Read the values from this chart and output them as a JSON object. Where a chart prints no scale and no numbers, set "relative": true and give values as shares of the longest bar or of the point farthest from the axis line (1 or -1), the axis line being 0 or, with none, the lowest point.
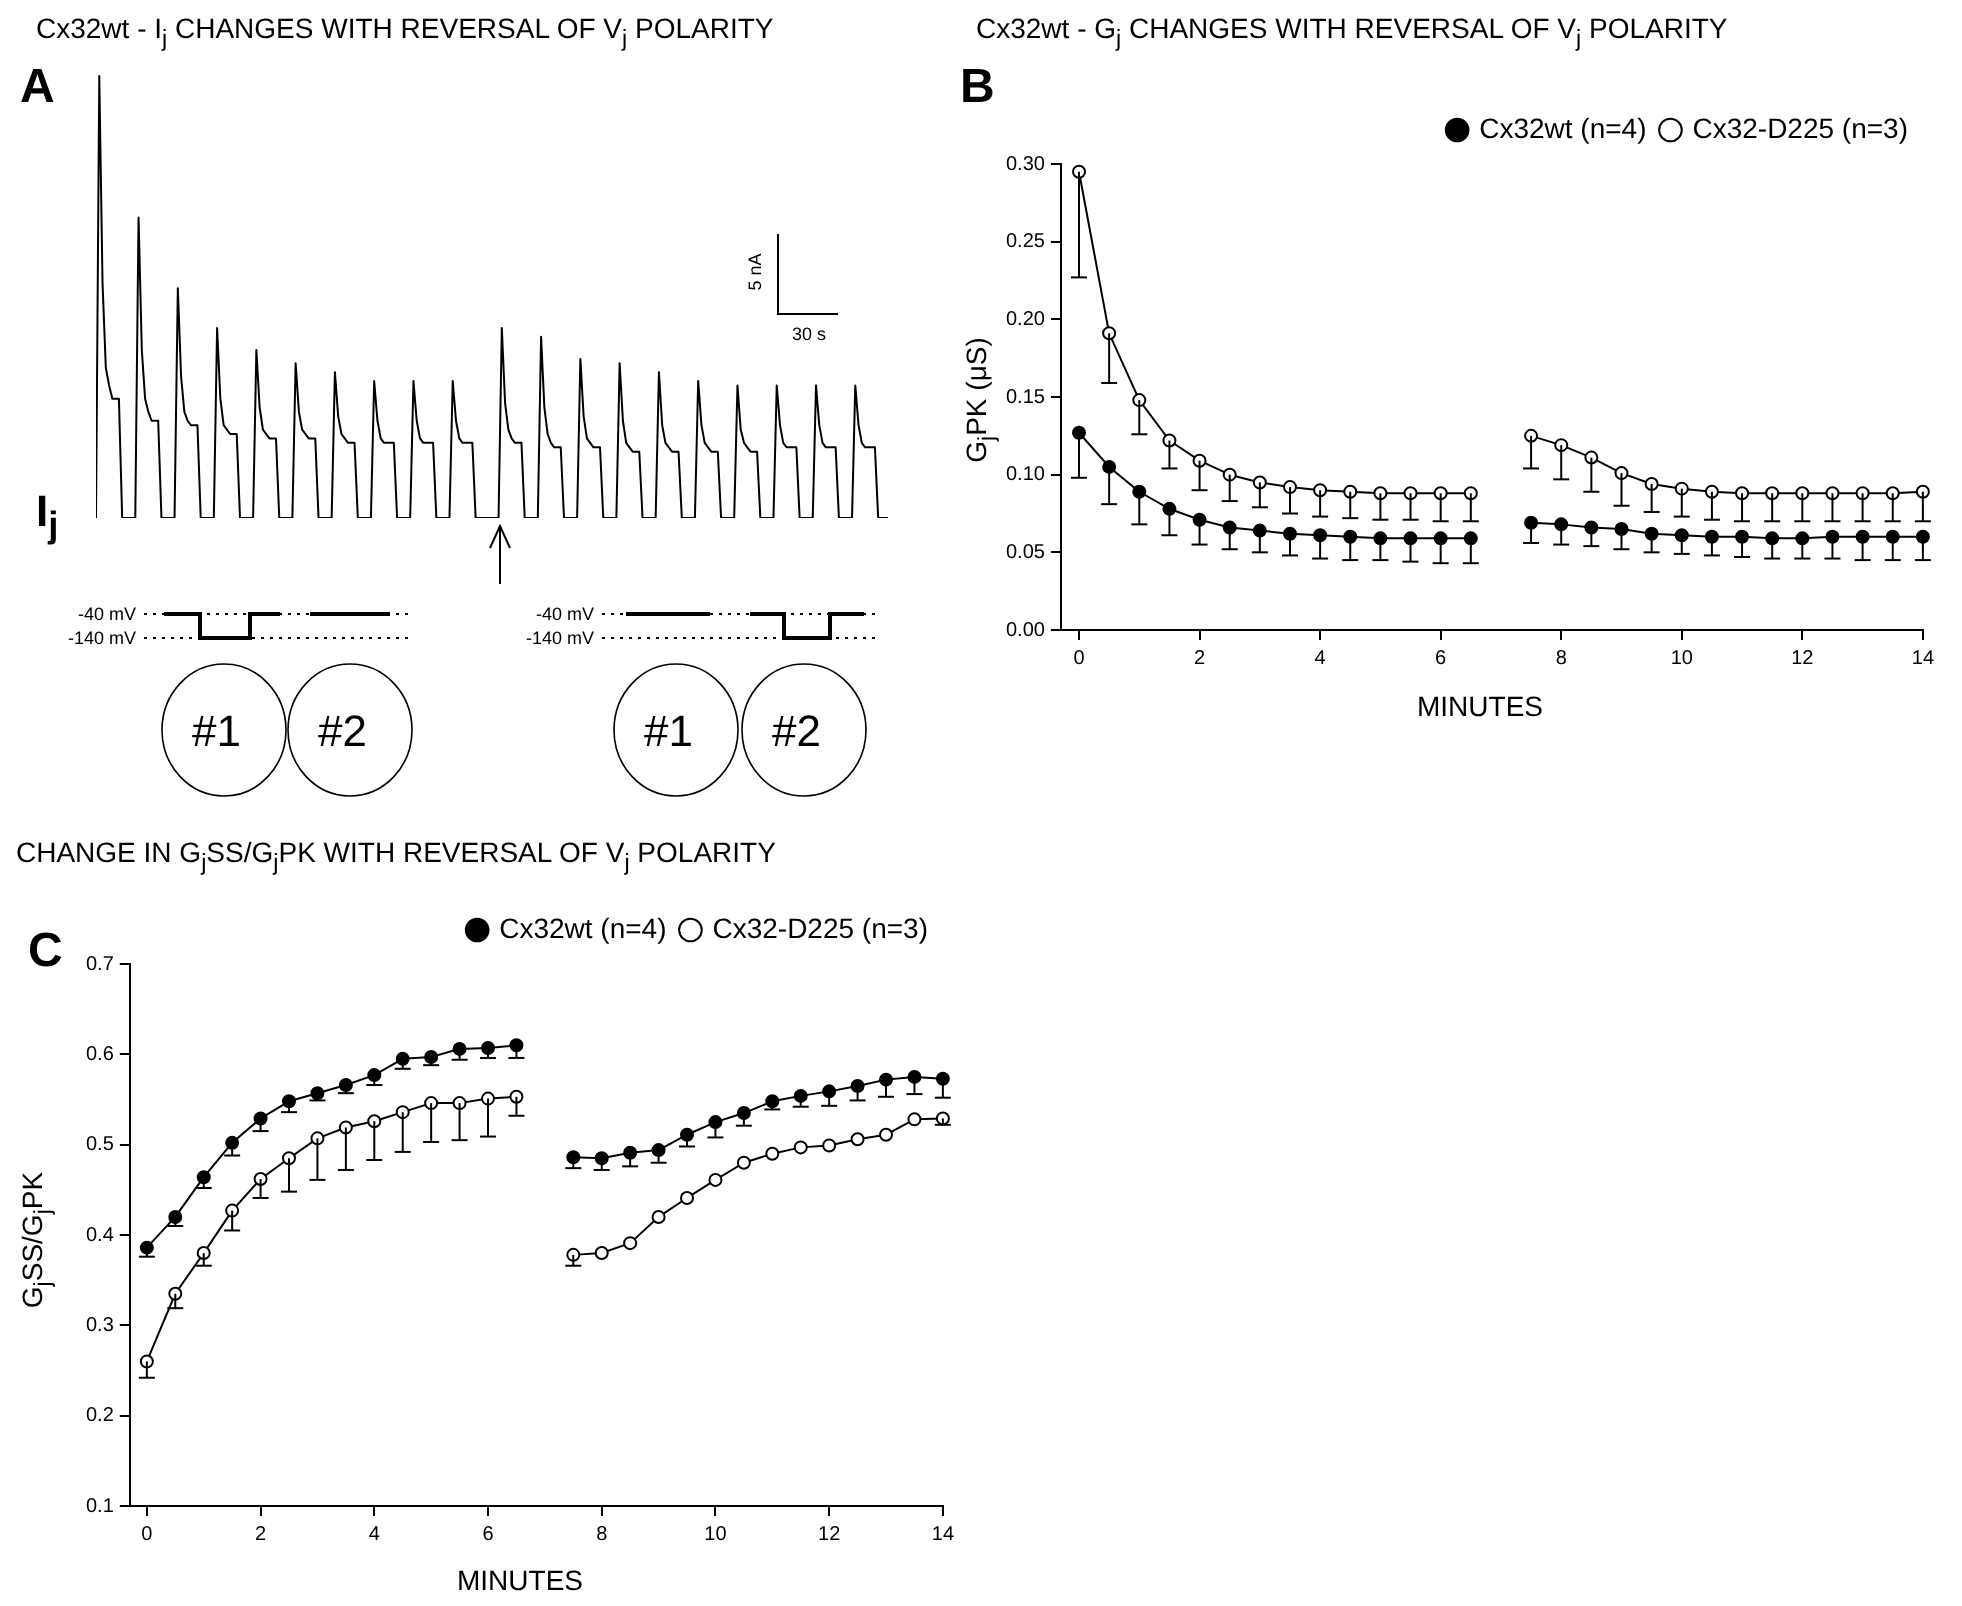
{
  "chart_data": [
    {
      "type": "line",
      "title": "Cx32wt - I$_{j}$ CHANGES WITH REVERSAL OF V$_{j}$ POLARITY",
      "ylabel": "I$_{j}$",
      "relative": true,
      "annotations": [
        "A",
        "5 nA",
        "30 s",
        "-40 mV",
        "-140 mV",
        "#1",
        "#2",
        "-40 mV",
        "-140 mV",
        "#1",
        "#2"
      ],
      "categories": [
        null,
        null,
        null,
        null,
        null,
        null,
        null,
        null,
        null,
        null,
        null,
        null,
        null,
        null,
        null,
        null,
        null,
        null,
        null,
        null,
        null,
        null,
        null,
        null,
        null,
        null,
        null,
        null,
        null,
        null,
        null,
        null,
        null,
        null,
        null,
        null,
        null,
        null,
        null,
        null,
        null,
        null,
        null,
        null,
        null,
        null,
        null,
        null,
        null,
        null,
        null,
        null,
        null,
        null,
        null,
        null,
        null,
        null,
        null,
        null,
        null,
        null,
        null,
        null,
        null,
        null,
        null,
        null,
        null,
        null,
        null,
        null,
        null,
        null,
        null,
        null,
        null,
        null,
        null,
        null,
        null,
        null,
        null,
        null,
        null,
        null,
        null,
        null,
        null,
        null,
        null,
        null,
        null,
        null,
        null,
        null,
        null,
        null,
        null,
        null,
        null,
        null,
        null,
        null,
        null,
        null,
        null,
        null,
        null,
        null,
        null,
        null,
        null,
        null,
        null,
        null,
        null,
        null,
        null,
        null,
        null,
        null,
        null,
        null,
        null,
        null,
        null,
        null,
        null,
        null,
        null,
        null,
        null,
        null,
        null,
        null,
        null,
        null,
        null,
        null,
        null,
        null,
        null,
        null,
        null,
        null,
        null,
        null,
        null,
        null,
        null,
        null,
        null,
        null,
        null,
        null,
        null,
        null,
        null,
        null,
        null,
        null,
        null,
        null,
        null,
        null,
        null,
        null,
        null,
        null,
        null,
        null,
        null,
        null,
        null,
        null,
        null,
        null,
        null,
        null,
        null,
        null,
        null,
        null,
        null,
        null,
        null,
        null,
        null,
        null,
        null,
        null,
        null,
        null,
        null,
        null,
        null,
        null,
        null,
        null,
        null,
        null,
        null,
        null,
        null,
        null,
        null,
        null,
        null,
        null,
        null,
        null,
        null,
        null,
        null,
        null,
        null,
        null,
        null,
        null,
        null,
        null,
        null,
        null,
        null,
        null,
        null,
        null,
        null,
        null,
        null,
        null,
        null,
        null,
        null,
        null,
        null,
        null,
        null,
        null,
        null,
        null,
        null
      ],
      "series": [
        {
          "color": "#000000",
          "values": [
            0,
            1.0,
            0.53,
            0.34,
            0.3,
            0.27,
            0.27,
            0.27,
            0,
            0,
            0,
            0,
            0,
            0.68,
            0.38,
            0.27,
            0.24,
            0.22,
            0.22,
            0.22,
            0,
            0,
            0,
            0,
            0,
            0.52,
            0.32,
            0.24,
            0.22,
            0.21,
            0.21,
            0.21,
            0,
            0,
            0,
            0,
            0,
            0.43,
            0.27,
            0.21,
            0.2,
            0.19,
            0.19,
            0.19,
            0,
            0,
            0,
            0,
            0,
            0.38,
            0.25,
            0.2,
            0.19,
            0.18,
            0.18,
            0.18,
            0,
            0,
            0,
            0,
            0,
            0.35,
            0.24,
            0.2,
            0.19,
            0.18,
            0.18,
            0.18,
            0,
            0,
            0,
            0,
            0,
            0.33,
            0.23,
            0.19,
            0.18,
            0.17,
            0.17,
            0.17,
            0,
            0,
            0,
            0,
            0,
            0.31,
            0.22,
            0.18,
            0.17,
            0.17,
            0.17,
            0.17,
            0,
            0,
            0,
            0,
            0,
            0.31,
            0.22,
            0.18,
            0.17,
            0.17,
            0.17,
            0.17,
            0,
            0,
            0,
            0,
            0,
            0.31,
            0.22,
            0.18,
            0.17,
            0.17,
            0.17,
            0.17,
            0,
            0,
            0,
            0,
            0,
            0,
            0,
            0,
            0.43,
            0.26,
            0.2,
            0.18,
            0.17,
            0.17,
            0.17,
            0,
            0,
            0,
            0,
            0,
            0.41,
            0.25,
            0.19,
            0.17,
            0.16,
            0.16,
            0.16,
            0,
            0,
            0,
            0,
            0,
            0.36,
            0.23,
            0.18,
            0.17,
            0.16,
            0.16,
            0.16,
            0,
            0,
            0,
            0,
            0,
            0.35,
            0.22,
            0.17,
            0.16,
            0.15,
            0.15,
            0.15,
            0,
            0,
            0,
            0,
            0,
            0.33,
            0.21,
            0.17,
            0.16,
            0.15,
            0.15,
            0.15,
            0,
            0,
            0,
            0,
            0,
            0.31,
            0.21,
            0.17,
            0.16,
            0.15,
            0.15,
            0.15,
            0,
            0,
            0,
            0,
            0,
            0.3,
            0.2,
            0.17,
            0.16,
            0.15,
            0.15,
            0.15,
            0,
            0,
            0,
            0,
            0,
            0.3,
            0.21,
            0.17,
            0.16,
            0.16,
            0.16,
            0.16,
            0,
            0,
            0,
            0,
            0,
            0.3,
            0.21,
            0.17,
            0.16,
            0.16,
            0.16,
            0.16,
            0,
            0,
            0,
            0,
            0,
            0.3,
            0.21,
            0.17,
            0.16,
            0.16,
            0.16,
            0.16,
            0,
            0,
            0,
            0
          ]
        }
      ]
    },
    {
      "type": "line",
      "title": "Cx32wt - G$_{j}$ CHANGES WITH REVERSAL OF V$_{j}$ POLARITY",
      "xlabel": "MINUTES",
      "ylabel": "G$_{j}$PK (μS)",
      "annotations": [
        "B"
      ],
      "x": [
        0,
        0.5,
        1,
        1.5,
        2,
        2.5,
        3,
        3.5,
        4,
        4.5,
        5,
        5.5,
        6,
        6.5,
        7,
        7.5,
        8,
        8.5,
        9,
        9.5,
        10,
        10.5,
        11,
        11.5,
        12,
        12.5,
        13,
        13.5,
        14
      ],
      "xlim": [
        -0.3,
        14
      ],
      "xticks": [
        0,
        2,
        4,
        6,
        8,
        10,
        12,
        14
      ],
      "ylim": [
        0,
        0.3
      ],
      "yticks": [
        {
          "value": 0,
          "label": "0.00"
        },
        {
          "value": 0.05,
          "label": "0.05"
        },
        {
          "value": 0.1,
          "label": "0.10"
        },
        {
          "value": 0.15,
          "label": "0.15"
        },
        {
          "value": 0.2,
          "label": "0.20"
        },
        {
          "value": 0.25,
          "label": "0.25"
        },
        {
          "value": 0.3,
          "label": "0.30"
        }
      ],
      "grid": false,
      "legend": "top right",
      "marker": "circle",
      "series": [
        {
          "name": "Cx32wt (n=4)",
          "color": "#000000",
          "values": [
            0.127,
            0.105,
            0.089,
            0.078,
            0.071,
            0.066,
            0.064,
            0.062,
            0.061,
            0.06,
            0.059,
            0.059,
            0.059,
            0.059,
            null,
            0.069,
            0.068,
            0.066,
            0.065,
            0.062,
            0.061,
            0.06,
            0.06,
            0.059,
            0.059,
            0.06,
            0.06,
            0.06,
            0.06
          ],
          "errors": [
            [
              0.098,
              0.127
            ],
            [
              0.081,
              0.105
            ],
            [
              0.068,
              0.089
            ],
            [
              0.061,
              0.078
            ],
            [
              0.055,
              0.071
            ],
            [
              0.052,
              0.066
            ],
            [
              0.05,
              0.064
            ],
            [
              0.048,
              0.062
            ],
            [
              0.046,
              0.061
            ],
            [
              0.045,
              0.06
            ],
            [
              0.045,
              0.059
            ],
            [
              0.044,
              0.059
            ],
            [
              0.043,
              0.059
            ],
            [
              0.043,
              0.059
            ],
            null,
            [
              0.056,
              0.069
            ],
            [
              0.055,
              0.068
            ],
            [
              0.054,
              0.066
            ],
            [
              0.052,
              0.065
            ],
            [
              0.05,
              0.062
            ],
            [
              0.049,
              0.061
            ],
            [
              0.048,
              0.06
            ],
            [
              0.047,
              0.06
            ],
            [
              0.046,
              0.059
            ],
            [
              0.046,
              0.059
            ],
            [
              0.046,
              0.06
            ],
            [
              0.045,
              0.06
            ],
            [
              0.045,
              0.06
            ],
            [
              0.045,
              0.06
            ]
          ]
        },
        {
          "name": "Cx32-D225 (n=3)",
          "color": "#000000",
          "values": [
            0.295,
            0.191,
            0.148,
            0.122,
            0.109,
            0.1,
            0.095,
            0.092,
            0.09,
            0.089,
            0.088,
            0.088,
            0.088,
            0.088,
            null,
            0.125,
            0.119,
            0.111,
            0.101,
            0.094,
            0.091,
            0.089,
            0.088,
            0.088,
            0.088,
            0.088,
            0.088,
            0.088,
            0.089
          ],
          "errors": [
            [
              0.227,
              0.295
            ],
            [
              0.159,
              0.191
            ],
            [
              0.126,
              0.148
            ],
            [
              0.104,
              0.122
            ],
            [
              0.09,
              0.109
            ],
            [
              0.083,
              0.1
            ],
            [
              0.079,
              0.095
            ],
            [
              0.075,
              0.092
            ],
            [
              0.073,
              0.09
            ],
            [
              0.072,
              0.089
            ],
            [
              0.071,
              0.088
            ],
            [
              0.071,
              0.088
            ],
            [
              0.07,
              0.088
            ],
            [
              0.07,
              0.088
            ],
            null,
            [
              0.104,
              0.125
            ],
            [
              0.097,
              0.119
            ],
            [
              0.089,
              0.111
            ],
            [
              0.08,
              0.101
            ],
            [
              0.076,
              0.094
            ],
            [
              0.073,
              0.091
            ],
            [
              0.071,
              0.089
            ],
            [
              0.07,
              0.088
            ],
            [
              0.07,
              0.088
            ],
            [
              0.07,
              0.088
            ],
            [
              0.07,
              0.088
            ],
            [
              0.07,
              0.088
            ],
            [
              0.07,
              0.088
            ],
            [
              0.07,
              0.089
            ]
          ]
        }
      ]
    },
    {
      "type": "line",
      "title": "CHANGE IN G$_{j}$SS/G$_{j}$PK WITH REVERSAL OF V$_{j}$ POLARITY",
      "xlabel": "MINUTES",
      "ylabel": "G$_{j}$SS/G$_{j}$PK",
      "annotations": [
        "C"
      ],
      "x": [
        0,
        0.5,
        1,
        1.5,
        2,
        2.5,
        3,
        3.5,
        4,
        4.5,
        5,
        5.5,
        6,
        6.5,
        7,
        7.5,
        8,
        8.5,
        9,
        9.5,
        10,
        10.5,
        11,
        11.5,
        12,
        12.5,
        13,
        13.5,
        14
      ],
      "xlim": [
        -0.3,
        14
      ],
      "xticks": [
        0,
        2,
        4,
        6,
        8,
        10,
        12,
        14
      ],
      "ylim": [
        0.1,
        0.7
      ],
      "yticks": [
        0.1,
        0.2,
        0.3,
        0.4,
        0.5,
        0.6,
        0.7
      ],
      "grid": false,
      "legend": "top right",
      "marker": "circle",
      "series": [
        {
          "name": "Cx32wt (n=4)",
          "color": "#000000",
          "values": [
            0.386,
            0.42,
            0.464,
            0.502,
            0.529,
            0.548,
            0.557,
            0.566,
            0.577,
            0.595,
            0.597,
            0.606,
            0.607,
            0.61,
            null,
            0.486,
            0.485,
            0.491,
            0.494,
            0.511,
            0.525,
            0.535,
            0.548,
            0.554,
            0.559,
            0.565,
            0.572,
            0.575,
            0.573
          ],
          "errors": [
            [
              0.376,
              0.386
            ],
            [
              0.41,
              0.42
            ],
            [
              0.452,
              0.464
            ],
            [
              0.488,
              0.502
            ],
            [
              0.515,
              0.529
            ],
            [
              0.536,
              0.548
            ],
            [
              0.549,
              0.557
            ],
            [
              0.557,
              0.566
            ],
            [
              0.566,
              0.577
            ],
            [
              0.584,
              0.595
            ],
            [
              0.588,
              0.597
            ],
            [
              0.594,
              0.606
            ],
            [
              0.596,
              0.607
            ],
            [
              0.596,
              0.61
            ],
            null,
            [
              0.474,
              0.486
            ],
            [
              0.472,
              0.485
            ],
            [
              0.476,
              0.491
            ],
            [
              0.48,
              0.494
            ],
            [
              0.498,
              0.511
            ],
            [
              0.508,
              0.525
            ],
            [
              0.521,
              0.535
            ],
            [
              0.539,
              0.548
            ],
            [
              0.542,
              0.554
            ],
            [
              0.543,
              0.559
            ],
            [
              0.549,
              0.565
            ],
            [
              0.553,
              0.572
            ],
            [
              0.556,
              0.575
            ],
            [
              0.552,
              0.573
            ]
          ]
        },
        {
          "name": "Cx32-D225 (n=3)",
          "color": "#000000",
          "values": [
            0.26,
            0.335,
            0.38,
            0.427,
            0.462,
            0.485,
            0.507,
            0.519,
            0.526,
            0.536,
            0.546,
            0.546,
            0.551,
            0.553,
            null,
            0.378,
            0.38,
            0.391,
            0.42,
            0.441,
            0.461,
            0.48,
            0.49,
            0.497,
            0.499,
            0.506,
            0.511,
            0.528,
            0.529
          ],
          "errors": [
            [
              0.242,
              0.26
            ],
            [
              0.319,
              0.335
            ],
            [
              0.366,
              0.38
            ],
            [
              0.405,
              0.427
            ],
            [
              0.441,
              0.462
            ],
            [
              0.448,
              0.485
            ],
            [
              0.461,
              0.507
            ],
            [
              0.472,
              0.519
            ],
            [
              0.483,
              0.526
            ],
            [
              0.492,
              0.536
            ],
            [
              0.503,
              0.546
            ],
            [
              0.505,
              0.546
            ],
            [
              0.509,
              0.551
            ],
            [
              0.532,
              0.553
            ],
            null,
            [
              0.366,
              0.378
            ],
            null,
            null,
            null,
            null,
            null,
            null,
            null,
            null,
            null,
            null,
            null,
            null,
            [
              0.522,
              0.529
            ]
          ]
        }
      ]
    }
  ]
}
